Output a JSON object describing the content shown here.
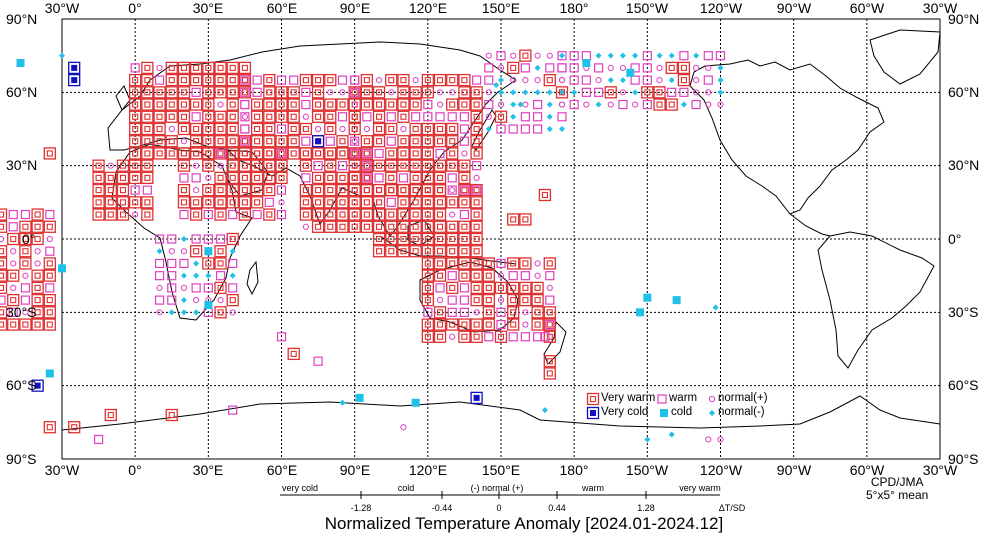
{
  "map": {
    "title": "Normalized Temperature Anomaly [2024.01-2024.12]",
    "credit_line1": "CPD/JMA",
    "credit_line2": "5°x5° mean",
    "lon_labels": [
      "30°W",
      "0°",
      "30°E",
      "60°E",
      "90°E",
      "120°E",
      "150°E",
      "180°",
      "150°W",
      "120°W",
      "90°W",
      "60°W",
      "30°W"
    ],
    "lat_labels": [
      "90°N",
      "60°N",
      "30°N",
      "0°",
      "30°S",
      "60°S",
      "90°S"
    ]
  },
  "legend": {
    "very_warm": "Very warm",
    "warm": "warm",
    "normal_plus": "normal(+)",
    "very_cold": "Very cold",
    "cold": "cold",
    "normal_minus": "normal(-)"
  },
  "scale": {
    "categories": [
      "very cold",
      "cold",
      "(-) normal (+)",
      "warm",
      "very warm"
    ],
    "thresholds": [
      "-1.28",
      "-0.44",
      "0",
      "0.44",
      "1.28"
    ],
    "unit": "ΔT/SD"
  },
  "colors": {
    "very_warm": "#e03030",
    "warm": "#e040c0",
    "cold": "#20c0e8",
    "very_cold": "#1010c0",
    "land": "#000000",
    "grid": "#000000"
  }
}
